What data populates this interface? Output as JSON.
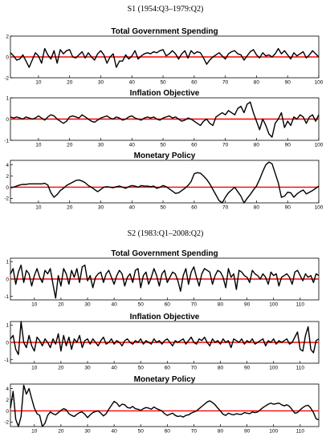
{
  "sections": [
    {
      "title": "S1 (1954:Q3–1979:Q2)"
    },
    {
      "title": "S2 (1983:Q1–2008:Q2)"
    }
  ],
  "colors": {
    "series": "#000000",
    "zero_line": "#ff0000",
    "axes": "#000000"
  },
  "chart_data": [
    {
      "type": "line",
      "title": "Total Government Spending",
      "xlabel": "",
      "ylabel": "",
      "xlim": [
        1,
        100
      ],
      "ylim": [
        -2,
        2
      ],
      "xticks": [
        10,
        20,
        30,
        40,
        50,
        60,
        70,
        80,
        90,
        100
      ],
      "yticks": [
        -2,
        0,
        2
      ],
      "reference_line": 0,
      "grid": false,
      "series": [
        {
          "values": [
            0.4,
            0.1,
            -0.3,
            -0.2,
            0.2,
            -0.4,
            -1.0,
            -0.3,
            0.4,
            0.1,
            -0.6,
            0.8,
            0.2,
            -0.2,
            0.6,
            -0.6,
            0.7,
            0.3,
            0.6,
            0.7,
            0.0,
            -0.1,
            0.2,
            0.5,
            -0.1,
            0.4,
            0.0,
            -0.3,
            0.3,
            0.6,
            0.2,
            -0.6,
            0.0,
            0.3,
            -1.0,
            -0.4,
            -0.4,
            0.2,
            -0.2,
            0.1,
            0.6,
            -0.2,
            0.1,
            0.3,
            0.4,
            0.3,
            0.5,
            0.4,
            0.6,
            0.7,
            0.1,
            0.3,
            0.6,
            0.3,
            -0.2,
            0.3,
            0.6,
            -0.1,
            0.6,
            0.3,
            0.5,
            0.4,
            -0.1,
            -0.7,
            -0.3,
            0.0,
            0.2,
            0.4,
            0.1,
            -0.2,
            0.3,
            0.5,
            0.6,
            0.3,
            0.2,
            -0.3,
            0.1,
            0.5,
            0.7,
            0.2,
            -0.1,
            0.4,
            0.1,
            0.2,
            0.0,
            0.3,
            0.8,
            0.3,
            0.6,
            0.2,
            -0.2,
            0.4,
            0.1,
            0.3,
            0.5,
            -0.1,
            0.2,
            0.6,
            0.3,
            0.0
          ]
        }
      ]
    },
    {
      "type": "line",
      "title": "Inflation Objective",
      "xlabel": "",
      "ylabel": "",
      "xlim": [
        1,
        100
      ],
      "ylim": [
        -1,
        1
      ],
      "xticks": [
        10,
        20,
        30,
        40,
        50,
        60,
        70,
        80,
        90,
        100
      ],
      "yticks": [
        -1,
        0,
        1
      ],
      "reference_line": 0,
      "grid": false,
      "series": [
        {
          "values": [
            0.1,
            0.05,
            0.1,
            0.05,
            0.0,
            0.1,
            0.05,
            0.0,
            0.05,
            0.15,
            0.05,
            -0.05,
            0.1,
            0.2,
            0.15,
            0.0,
            -0.1,
            -0.2,
            -0.1,
            0.1,
            0.15,
            0.1,
            0.05,
            0.2,
            0.1,
            0.0,
            -0.1,
            -0.15,
            -0.05,
            0.05,
            0.1,
            0.15,
            0.05,
            0.0,
            0.1,
            0.05,
            -0.05,
            0.0,
            0.1,
            0.15,
            0.05,
            0.0,
            -0.05,
            0.05,
            0.1,
            0.05,
            0.1,
            0.0,
            -0.05,
            0.05,
            0.1,
            0.15,
            0.05,
            0.1,
            0.0,
            -0.1,
            -0.05,
            0.05,
            0.0,
            -0.1,
            -0.2,
            -0.3,
            -0.1,
            0.0,
            -0.2,
            -0.3,
            0.1,
            0.2,
            0.3,
            0.2,
            0.4,
            0.3,
            0.2,
            0.5,
            0.6,
            0.3,
            0.7,
            0.8,
            0.3,
            -0.1,
            -0.5,
            0.0,
            -0.3,
            -0.7,
            -0.85,
            -0.2,
            0.0,
            0.3,
            -0.4,
            -0.1,
            -0.3,
            0.1,
            0.0,
            0.2,
            0.1,
            -0.2,
            0.1,
            0.2,
            -0.1,
            0.2
          ]
        }
      ]
    },
    {
      "type": "line",
      "title": "Monetary Policy",
      "xlabel": "",
      "ylabel": "",
      "xlim": [
        1,
        100
      ],
      "ylim": [
        -2.8,
        4.8
      ],
      "xticks": [
        10,
        20,
        30,
        40,
        50,
        60,
        70,
        80,
        90,
        100
      ],
      "yticks": [
        -2,
        0,
        2,
        4
      ],
      "reference_line": 0,
      "grid": false,
      "series": [
        {
          "values": [
            -0.1,
            0.0,
            0.2,
            0.4,
            0.5,
            0.5,
            0.6,
            0.6,
            0.6,
            0.6,
            0.6,
            0.7,
            0.4,
            -1.0,
            -1.8,
            -1.3,
            -0.6,
            -0.2,
            0.3,
            0.6,
            0.9,
            1.2,
            1.3,
            1.1,
            0.8,
            0.3,
            0.0,
            -0.4,
            -0.8,
            -0.4,
            0.0,
            0.1,
            0.0,
            -0.1,
            0.1,
            0.2,
            0.0,
            -0.2,
            0.1,
            0.3,
            0.2,
            0.0,
            0.3,
            0.2,
            0.2,
            0.1,
            0.2,
            -0.2,
            0.0,
            0.3,
            0.1,
            -0.3,
            -0.7,
            -1.1,
            -1.0,
            -0.6,
            -0.2,
            0.3,
            1.0,
            2.4,
            2.6,
            2.5,
            2.0,
            1.4,
            0.6,
            -0.4,
            -1.4,
            -2.4,
            -2.8,
            -1.8,
            -1.0,
            -0.5,
            0.0,
            -0.8,
            -1.6,
            -2.8,
            -2.0,
            -1.3,
            -0.5,
            0.2,
            1.4,
            2.8,
            4.0,
            4.5,
            4.2,
            2.5,
            0.8,
            -1.8,
            -1.6,
            -0.9,
            -1.0,
            -1.8,
            -1.2,
            -0.8,
            -0.5,
            -1.2,
            -0.9,
            -0.6,
            -0.2,
            0.2
          ]
        }
      ]
    },
    {
      "type": "line",
      "title": "Total Government Spending",
      "xlabel": "",
      "ylabel": "",
      "xlim": [
        1,
        117
      ],
      "ylim": [
        -1.2,
        1.2
      ],
      "xticks": [
        10,
        20,
        30,
        40,
        50,
        60,
        70,
        80,
        90,
        100,
        110
      ],
      "yticks": [
        -1,
        0,
        1
      ],
      "reference_line": 0,
      "grid": false,
      "series": [
        {
          "values": [
            0.3,
            0.6,
            -0.3,
            0.4,
            0.8,
            -0.2,
            0.5,
            0.3,
            -0.4,
            0.2,
            0.6,
            0.1,
            -0.2,
            0.5,
            0.3,
            0.6,
            -0.3,
            -1.1,
            0.2,
            -0.4,
            0.6,
            0.3,
            -0.3,
            0.5,
            0.1,
            0.6,
            -0.2,
            0.7,
            0.8,
            -0.1,
            0.2,
            -0.5,
            0.1,
            0.3,
            0.4,
            -0.2,
            0.3,
            0.5,
            0.1,
            -0.3,
            0.2,
            0.5,
            0.3,
            -0.4,
            0.1,
            0.3,
            -0.2,
            0.5,
            0.6,
            -0.5,
            0.2,
            0.4,
            -0.3,
            0.1,
            0.6,
            0.2,
            -0.4,
            0.3,
            0.5,
            -0.2,
            0.1,
            0.4,
            0.3,
            -0.1,
            -0.7,
            0.2,
            0.6,
            -0.3,
            0.4,
            0.7,
            0.1,
            -0.4,
            0.3,
            0.6,
            0.5,
            0.4,
            -0.3,
            0.2,
            0.5,
            0.4,
            0.1,
            -0.5,
            0.6,
            0.1,
            0.3,
            -0.6,
            0.5,
            0.4,
            0.2,
            0.1,
            -0.2,
            0.5,
            0.3,
            0.2,
            0.0,
            0.3,
            0.1,
            -0.3,
            0.4,
            0.2,
            0.3,
            -0.4,
            0.1,
            0.2,
            0.3,
            0.1,
            -0.3,
            0.4,
            0.5,
            0.2,
            -0.1,
            0.3,
            0.1,
            0.2,
            -0.2,
            0.3,
            0.2
          ]
        }
      ]
    },
    {
      "type": "line",
      "title": "Inflation Objective",
      "xlabel": "",
      "ylabel": "",
      "xlim": [
        1,
        117
      ],
      "ylim": [
        -1.2,
        1.2
      ],
      "xticks": [
        10,
        20,
        30,
        40,
        50,
        60,
        70,
        80,
        90,
        100,
        110
      ],
      "yticks": [
        -1,
        0,
        1
      ],
      "reference_line": 0,
      "grid": false,
      "series": [
        {
          "values": [
            0.2,
            0.4,
            -0.4,
            -0.7,
            1.2,
            0.0,
            -0.3,
            0.4,
            -0.2,
            -0.5,
            0.3,
            0.1,
            -0.2,
            0.2,
            0.0,
            -0.3,
            0.2,
            -0.1,
            0.5,
            -0.5,
            0.4,
            -0.2,
            0.3,
            -0.4,
            0.2,
            0.0,
            0.4,
            -0.3,
            0.1,
            0.2,
            -0.1,
            0.2,
            0.0,
            -0.2,
            0.1,
            0.3,
            -0.1,
            0.0,
            0.2,
            -0.1,
            0.1,
            0.0,
            -0.2,
            0.1,
            0.2,
            0.0,
            -0.1,
            0.1,
            0.0,
            0.2,
            -0.1,
            0.1,
            0.0,
            -0.1,
            0.2,
            0.0,
            0.1,
            -0.1,
            0.1,
            0.2,
            0.0,
            -0.2,
            0.1,
            0.0,
            0.1,
            0.2,
            -0.1,
            0.1,
            0.3,
            0.0,
            -0.1,
            0.2,
            0.1,
            0.3,
            0.0,
            -0.2,
            0.2,
            0.0,
            0.1,
            -0.1,
            0.2,
            0.0,
            0.1,
            -0.3,
            0.2,
            0.1,
            0.0,
            0.2,
            -0.1,
            0.1,
            0.0,
            0.2,
            -0.1,
            0.0,
            0.1,
            0.2,
            -0.2,
            0.1,
            0.0,
            0.2,
            -0.1,
            0.1,
            0.0,
            0.1,
            0.2,
            -0.1,
            0.0,
            0.3,
            0.6,
            -0.4,
            -0.5,
            0.4,
            0.9,
            -0.4,
            -0.6,
            0.1,
            0.2
          ]
        }
      ]
    },
    {
      "type": "line",
      "title": "Monetary Policy",
      "xlabel": "",
      "ylabel": "",
      "xlim": [
        1,
        117
      ],
      "ylim": [
        -2.8,
        4.8
      ],
      "xticks": [
        10,
        20,
        30,
        40,
        50,
        60,
        70,
        80,
        90,
        100,
        110
      ],
      "yticks": [
        -2,
        0,
        2,
        4
      ],
      "reference_line": 0,
      "grid": false,
      "series": [
        {
          "values": [
            0.5,
            3.5,
            -1.5,
            -2.8,
            -1.0,
            4.6,
            3.0,
            4.0,
            2.2,
            0.5,
            -0.5,
            -0.8,
            -2.8,
            -2.2,
            -0.8,
            -0.2,
            -0.5,
            -0.7,
            -0.3,
            0.1,
            0.4,
            0.2,
            -0.5,
            -0.8,
            -1.0,
            -0.6,
            -0.3,
            -0.2,
            -0.6,
            -1.2,
            -0.7,
            -0.3,
            -0.1,
            0.0,
            -0.4,
            -0.9,
            -0.5,
            0.3,
            1.0,
            1.7,
            1.4,
            0.8,
            1.2,
            1.1,
            0.6,
            0.5,
            0.8,
            0.4,
            0.3,
            0.1,
            0.4,
            0.6,
            0.5,
            0.3,
            0.7,
            0.4,
            0.2,
            0.0,
            -0.5,
            -0.8,
            -0.6,
            -0.4,
            -0.8,
            -1.0,
            -0.9,
            -1.1,
            -0.8,
            -0.7,
            -0.4,
            -0.2,
            0.0,
            0.4,
            0.8,
            1.2,
            1.6,
            1.8,
            1.5,
            1.1,
            0.5,
            0.0,
            -0.6,
            -0.8,
            -0.4,
            -0.6,
            -0.7,
            -0.5,
            -0.6,
            -0.6,
            -0.3,
            -0.4,
            -0.5,
            -0.2,
            -0.3,
            -0.2,
            0.2,
            0.6,
            0.9,
            1.2,
            1.4,
            1.2,
            1.3,
            1.4,
            1.1,
            0.9,
            1.1,
            0.8,
            0.2,
            -0.4,
            -0.3,
            0.2,
            0.6,
            0.9,
            1.0,
            0.5,
            -0.3,
            -1.4,
            -1.6
          ]
        }
      ]
    }
  ]
}
